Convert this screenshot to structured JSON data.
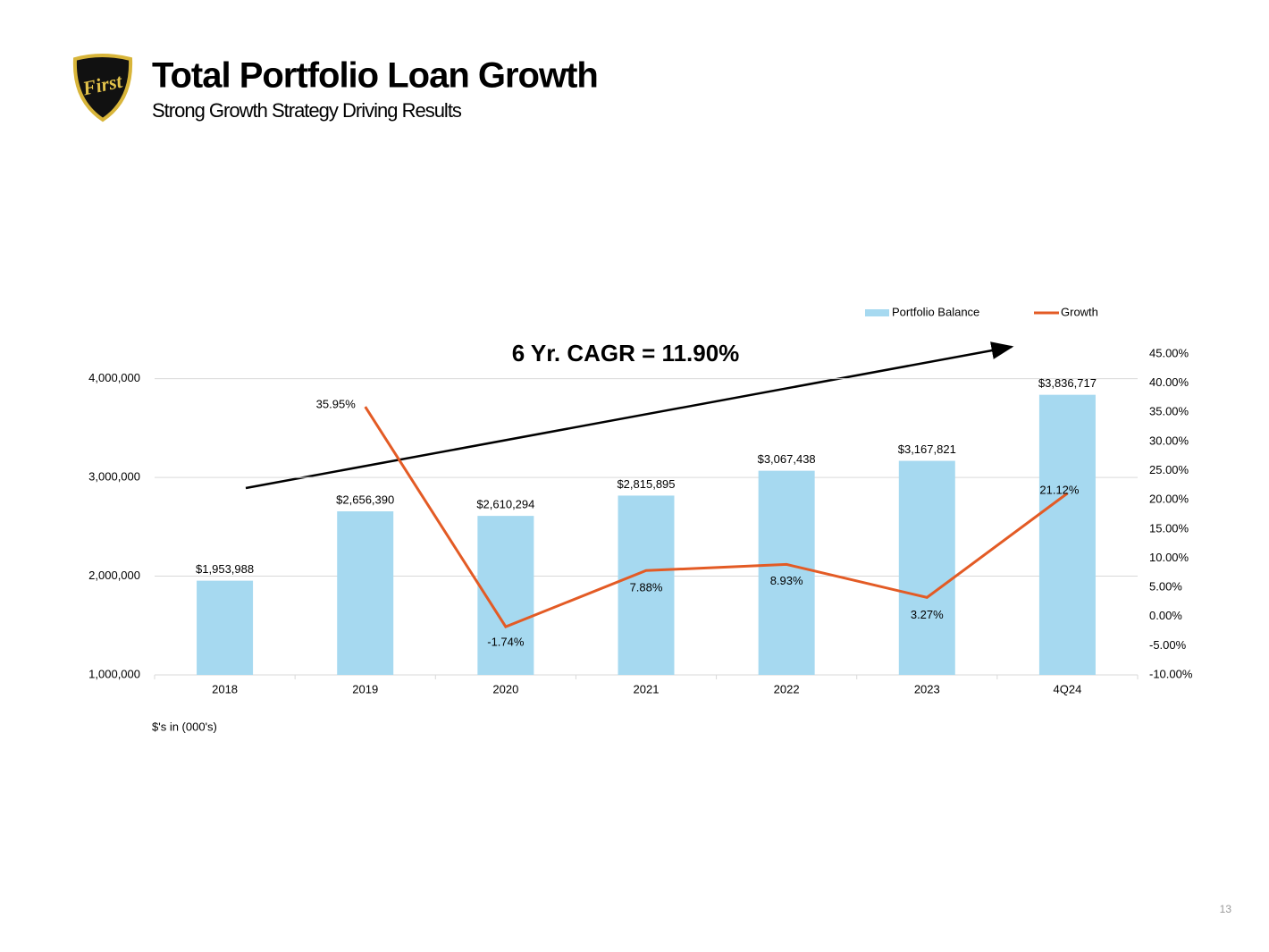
{
  "logo": "First",
  "chart_data": {
    "type": "bar",
    "title": "Total Portfolio Loan Growth",
    "subtitle": "Strong Growth Strategy Driving Results",
    "annotation": "6 Yr. CAGR = 11.90%",
    "footnote": "$'s in (000's)",
    "page_number": "13",
    "categories": [
      "2018",
      "2019",
      "2020",
      "2021",
      "2022",
      "2023",
      "4Q24"
    ],
    "series": [
      {
        "name": "Portfolio Balance",
        "type": "bar",
        "color": "#a6d9f0",
        "values": [
          1953988,
          2656390,
          2610294,
          2815895,
          3067438,
          3167821,
          3836717
        ],
        "value_labels": [
          "$1,953,988",
          "$2,656,390",
          "$2,610,294",
          "$2,815,895",
          "$3,067,438",
          "$3,167,821",
          "$3,836,717"
        ]
      },
      {
        "name": "Growth",
        "type": "line",
        "color": "#e35b25",
        "axis": "y2",
        "values": [
          null,
          35.95,
          -1.74,
          7.88,
          8.93,
          3.27,
          21.12
        ],
        "value_labels": [
          null,
          "35.95%",
          "-1.74%",
          "7.88%",
          "8.93%",
          "3.27%",
          "21.12%"
        ]
      }
    ],
    "ylim": [
      1000000,
      4250000
    ],
    "yticks": [
      {
        "value": 1000000,
        "label": "1,000,000"
      },
      {
        "value": 2000000,
        "label": "2,000,000"
      },
      {
        "value": 3000000,
        "label": "3,000,000"
      },
      {
        "value": 4000000,
        "label": "4,000,000"
      }
    ],
    "y2lim": [
      -10,
      45
    ],
    "y2ticks": [
      {
        "value": -10,
        "label": "-10.00%"
      },
      {
        "value": -5,
        "label": "-5.00%"
      },
      {
        "value": 0,
        "label": "0.00%"
      },
      {
        "value": 5,
        "label": "5.00%"
      },
      {
        "value": 10,
        "label": "10.00%"
      },
      {
        "value": 15,
        "label": "15.00%"
      },
      {
        "value": 20,
        "label": "20.00%"
      },
      {
        "value": 25,
        "label": "25.00%"
      },
      {
        "value": 30,
        "label": "30.00%"
      },
      {
        "value": 35,
        "label": "35.00%"
      },
      {
        "value": 40,
        "label": "40.00%"
      },
      {
        "value": 45,
        "label": "45.00%"
      }
    ],
    "grid": true,
    "legend": "top-right"
  }
}
